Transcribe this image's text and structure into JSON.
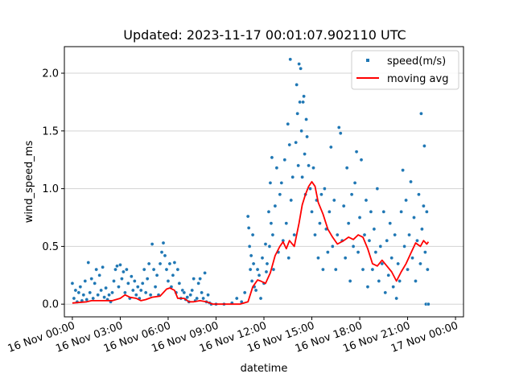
{
  "chart_data": {
    "type": "scatter",
    "title": "Updated: 2023-11-17 00:01:07.902110 UTC",
    "xlabel": "datetime",
    "ylabel": "wind_speed_ms",
    "x_range_hours": [
      -0.5,
      24.5
    ],
    "ylim": [
      -0.11,
      2.23
    ],
    "x_ticks": [
      {
        "hour": 0,
        "label": "16 Nov 00:00"
      },
      {
        "hour": 3,
        "label": "16 Nov 03:00"
      },
      {
        "hour": 6,
        "label": "16 Nov 06:00"
      },
      {
        "hour": 9,
        "label": "16 Nov 09:00"
      },
      {
        "hour": 12,
        "label": "16 Nov 12:00"
      },
      {
        "hour": 15,
        "label": "16 Nov 15:00"
      },
      {
        "hour": 18,
        "label": "16 Nov 18:00"
      },
      {
        "hour": 21,
        "label": "16 Nov 21:00"
      },
      {
        "hour": 24,
        "label": "17 Nov 00:00"
      }
    ],
    "y_ticks": [
      {
        "value": 0.0,
        "label": "0.0"
      },
      {
        "value": 0.5,
        "label": "0.5"
      },
      {
        "value": 1.0,
        "label": "1.0"
      },
      {
        "value": 1.5,
        "label": "1.5"
      },
      {
        "value": 2.0,
        "label": "2.0"
      }
    ],
    "grid": "horizontal",
    "legend": {
      "position": "top-right",
      "entries": [
        "speed(m/s)",
        "moving avg"
      ]
    },
    "series": [
      {
        "name": "speed(m/s)",
        "kind": "scatter",
        "color": "#1f77b4",
        "points": [
          [
            0.0,
            0.18
          ],
          [
            0.1,
            0.05
          ],
          [
            0.2,
            0.12
          ],
          [
            0.3,
            0.02
          ],
          [
            0.4,
            0.1
          ],
          [
            0.5,
            0.15
          ],
          [
            0.6,
            0.03
          ],
          [
            0.7,
            0.08
          ],
          [
            0.8,
            0.2
          ],
          [
            0.9,
            0.04
          ],
          [
            1.0,
            0.36
          ],
          [
            1.1,
            0.1
          ],
          [
            1.2,
            0.22
          ],
          [
            1.3,
            0.05
          ],
          [
            1.4,
            0.18
          ],
          [
            1.5,
            0.3
          ],
          [
            1.6,
            0.08
          ],
          [
            1.7,
            0.25
          ],
          [
            1.8,
            0.12
          ],
          [
            1.9,
            0.32
          ],
          [
            2.0,
            0.06
          ],
          [
            2.1,
            0.14
          ],
          [
            2.2,
            0.04
          ],
          [
            2.3,
            0.08
          ],
          [
            2.4,
            0.02
          ],
          [
            2.5,
            0.1
          ],
          [
            2.6,
            0.2
          ],
          [
            2.7,
            0.3
          ],
          [
            2.8,
            0.33
          ],
          [
            2.9,
            0.15
          ],
          [
            3.0,
            0.34
          ],
          [
            3.1,
            0.22
          ],
          [
            3.2,
            0.28
          ],
          [
            3.3,
            0.1
          ],
          [
            3.4,
            0.3
          ],
          [
            3.5,
            0.18
          ],
          [
            3.6,
            0.05
          ],
          [
            3.7,
            0.24
          ],
          [
            3.8,
            0.12
          ],
          [
            3.9,
            0.2
          ],
          [
            4.0,
            0.08
          ],
          [
            4.1,
            0.15
          ],
          [
            4.2,
            0.05
          ],
          [
            4.3,
            0.12
          ],
          [
            4.4,
            0.18
          ],
          [
            4.5,
            0.3
          ],
          [
            4.6,
            0.1
          ],
          [
            4.7,
            0.22
          ],
          [
            4.8,
            0.35
          ],
          [
            4.9,
            0.08
          ],
          [
            5.0,
            0.52
          ],
          [
            5.1,
            0.3
          ],
          [
            5.2,
            0.15
          ],
          [
            5.3,
            0.25
          ],
          [
            5.4,
            0.08
          ],
          [
            5.5,
            0.35
          ],
          [
            5.6,
            0.45
          ],
          [
            5.7,
            0.53
          ],
          [
            5.8,
            0.42
          ],
          [
            5.9,
            0.3
          ],
          [
            6.0,
            0.2
          ],
          [
            6.1,
            0.35
          ],
          [
            6.2,
            0.15
          ],
          [
            6.3,
            0.25
          ],
          [
            6.4,
            0.36
          ],
          [
            6.5,
            0.1
          ],
          [
            6.6,
            0.3
          ],
          [
            6.7,
            0.18
          ],
          [
            6.8,
            0.05
          ],
          [
            6.9,
            0.12
          ],
          [
            7.0,
            0.1
          ],
          [
            7.1,
            0.04
          ],
          [
            7.2,
            0.06
          ],
          [
            7.3,
            0.02
          ],
          [
            7.4,
            0.08
          ],
          [
            7.5,
            0.12
          ],
          [
            7.6,
            0.22
          ],
          [
            7.7,
            0.03
          ],
          [
            7.8,
            0.05
          ],
          [
            7.9,
            0.18
          ],
          [
            8.0,
            0.22
          ],
          [
            8.1,
            0.1
          ],
          [
            8.2,
            0.05
          ],
          [
            8.3,
            0.27
          ],
          [
            8.4,
            0.02
          ],
          [
            8.5,
            0.08
          ],
          [
            8.6,
            0.01
          ],
          [
            8.7,
            0.0
          ],
          [
            9.0,
            0.0
          ],
          [
            9.5,
            0.0
          ],
          [
            10.0,
            0.01
          ],
          [
            10.3,
            0.05
          ],
          [
            10.6,
            0.02
          ],
          [
            10.8,
            0.1
          ],
          [
            11.0,
            0.76
          ],
          [
            11.05,
            0.66
          ],
          [
            11.1,
            0.5
          ],
          [
            11.15,
            0.3
          ],
          [
            11.2,
            0.42
          ],
          [
            11.25,
            0.2
          ],
          [
            11.3,
            0.6
          ],
          [
            11.35,
            0.35
          ],
          [
            11.4,
            0.15
          ],
          [
            11.5,
            0.12
          ],
          [
            11.6,
            0.3
          ],
          [
            11.7,
            0.25
          ],
          [
            11.8,
            0.05
          ],
          [
            11.9,
            0.4
          ],
          [
            12.0,
            0.18
          ],
          [
            12.1,
            0.52
          ],
          [
            12.15,
            0.28
          ],
          [
            12.2,
            0.35
          ],
          [
            12.3,
            0.8
          ],
          [
            12.35,
            0.5
          ],
          [
            12.4,
            1.05
          ],
          [
            12.45,
            0.7
          ],
          [
            12.5,
            1.27
          ],
          [
            12.55,
            0.6
          ],
          [
            12.6,
            0.3
          ],
          [
            12.7,
            0.85
          ],
          [
            12.8,
            1.18
          ],
          [
            12.9,
            0.45
          ],
          [
            13.0,
            0.95
          ],
          [
            13.1,
            1.05
          ],
          [
            13.2,
            0.55
          ],
          [
            13.3,
            1.25
          ],
          [
            13.4,
            0.7
          ],
          [
            13.5,
            1.56
          ],
          [
            13.55,
            0.4
          ],
          [
            13.6,
            1.38
          ],
          [
            13.65,
            2.12
          ],
          [
            13.7,
            0.9
          ],
          [
            13.8,
            1.1
          ],
          [
            13.9,
            0.6
          ],
          [
            14.0,
            1.4
          ],
          [
            14.05,
            1.9
          ],
          [
            14.1,
            1.65
          ],
          [
            14.15,
            1.2
          ],
          [
            14.2,
            2.08
          ],
          [
            14.25,
            1.75
          ],
          [
            14.3,
            2.04
          ],
          [
            14.35,
            1.5
          ],
          [
            14.4,
            1.1
          ],
          [
            14.45,
            1.75
          ],
          [
            14.5,
            1.8
          ],
          [
            14.55,
            1.3
          ],
          [
            14.6,
            0.95
          ],
          [
            14.65,
            1.6
          ],
          [
            14.7,
            1.45
          ],
          [
            14.8,
            1.2
          ],
          [
            14.9,
            1.0
          ],
          [
            15.0,
            0.8
          ],
          [
            15.1,
            1.18
          ],
          [
            15.2,
            0.6
          ],
          [
            15.3,
            0.9
          ],
          [
            15.4,
            0.4
          ],
          [
            15.5,
            0.7
          ],
          [
            15.6,
            0.95
          ],
          [
            15.7,
            0.3
          ],
          [
            15.8,
            1.0
          ],
          [
            15.9,
            0.65
          ],
          [
            16.0,
            0.45
          ],
          [
            16.1,
            0.8
          ],
          [
            16.2,
            1.36
          ],
          [
            16.3,
            0.5
          ],
          [
            16.4,
            0.9
          ],
          [
            16.5,
            0.3
          ],
          [
            16.6,
            0.6
          ],
          [
            16.7,
            1.53
          ],
          [
            16.8,
            1.48
          ],
          [
            16.9,
            0.55
          ],
          [
            17.0,
            0.85
          ],
          [
            17.1,
            0.4
          ],
          [
            17.2,
            1.18
          ],
          [
            17.3,
            0.7
          ],
          [
            17.4,
            0.2
          ],
          [
            17.5,
            0.95
          ],
          [
            17.6,
            0.5
          ],
          [
            17.7,
            1.05
          ],
          [
            17.8,
            1.32
          ],
          [
            17.9,
            0.45
          ],
          [
            18.0,
            0.75
          ],
          [
            18.1,
            1.25
          ],
          [
            18.2,
            0.3
          ],
          [
            18.3,
            0.6
          ],
          [
            18.4,
            0.9
          ],
          [
            18.5,
            0.15
          ],
          [
            18.6,
            0.55
          ],
          [
            18.7,
            0.8
          ],
          [
            18.8,
            0.3
          ],
          [
            18.9,
            0.65
          ],
          [
            19.0,
            0.45
          ],
          [
            19.1,
            1.0
          ],
          [
            19.2,
            0.2
          ],
          [
            19.3,
            0.5
          ],
          [
            19.4,
            0.35
          ],
          [
            19.5,
            0.8
          ],
          [
            19.6,
            0.1
          ],
          [
            19.7,
            0.55
          ],
          [
            19.8,
            0.25
          ],
          [
            19.9,
            0.7
          ],
          [
            20.0,
            0.4
          ],
          [
            20.1,
            0.15
          ],
          [
            20.2,
            0.6
          ],
          [
            20.3,
            0.05
          ],
          [
            20.4,
            0.35
          ],
          [
            20.5,
            0.2
          ],
          [
            20.6,
            0.8
          ],
          [
            20.7,
            1.16
          ],
          [
            20.8,
            0.5
          ],
          [
            20.9,
            0.9
          ],
          [
            21.0,
            0.3
          ],
          [
            21.1,
            0.6
          ],
          [
            21.2,
            1.06
          ],
          [
            21.3,
            0.4
          ],
          [
            21.4,
            0.75
          ],
          [
            21.5,
            0.2
          ],
          [
            21.6,
            0.55
          ],
          [
            21.7,
            0.95
          ],
          [
            21.8,
            0.35
          ],
          [
            21.85,
            1.65
          ],
          [
            21.9,
            0.65
          ],
          [
            22.0,
            0.85
          ],
          [
            22.05,
            1.37
          ],
          [
            22.1,
            0.45
          ],
          [
            22.15,
            0.0
          ],
          [
            22.2,
            0.8
          ],
          [
            22.25,
            0.3
          ],
          [
            22.3,
            0.0
          ]
        ]
      },
      {
        "name": "moving avg",
        "kind": "line",
        "color": "#ff0000",
        "points": [
          [
            0.0,
            0.01
          ],
          [
            0.9,
            0.02
          ],
          [
            1.2,
            0.03
          ],
          [
            2.0,
            0.03
          ],
          [
            2.5,
            0.03
          ],
          [
            3.0,
            0.05
          ],
          [
            3.3,
            0.08
          ],
          [
            3.6,
            0.06
          ],
          [
            4.0,
            0.05
          ],
          [
            4.3,
            0.03
          ],
          [
            4.6,
            0.04
          ],
          [
            5.0,
            0.06
          ],
          [
            5.5,
            0.07
          ],
          [
            5.9,
            0.13
          ],
          [
            6.1,
            0.14
          ],
          [
            6.4,
            0.12
          ],
          [
            6.6,
            0.05
          ],
          [
            7.0,
            0.05
          ],
          [
            7.3,
            0.02
          ],
          [
            7.6,
            0.02
          ],
          [
            8.0,
            0.03
          ],
          [
            8.4,
            0.02
          ],
          [
            8.8,
            0.0
          ],
          [
            9.5,
            0.0
          ],
          [
            10.0,
            0.0
          ],
          [
            10.5,
            0.0
          ],
          [
            11.0,
            0.02
          ],
          [
            11.3,
            0.15
          ],
          [
            11.6,
            0.21
          ],
          [
            11.8,
            0.2
          ],
          [
            12.1,
            0.18
          ],
          [
            12.4,
            0.27
          ],
          [
            12.7,
            0.42
          ],
          [
            13.0,
            0.5
          ],
          [
            13.2,
            0.54
          ],
          [
            13.4,
            0.48
          ],
          [
            13.6,
            0.55
          ],
          [
            13.9,
            0.5
          ],
          [
            14.2,
            0.7
          ],
          [
            14.4,
            0.86
          ],
          [
            14.6,
            0.95
          ],
          [
            14.8,
            1.02
          ],
          [
            15.0,
            1.06
          ],
          [
            15.2,
            1.02
          ],
          [
            15.4,
            0.88
          ],
          [
            15.7,
            0.78
          ],
          [
            16.0,
            0.65
          ],
          [
            16.3,
            0.58
          ],
          [
            16.6,
            0.52
          ],
          [
            17.0,
            0.55
          ],
          [
            17.3,
            0.58
          ],
          [
            17.6,
            0.56
          ],
          [
            17.9,
            0.6
          ],
          [
            18.2,
            0.58
          ],
          [
            18.5,
            0.48
          ],
          [
            18.8,
            0.35
          ],
          [
            19.1,
            0.33
          ],
          [
            19.4,
            0.38
          ],
          [
            19.7,
            0.33
          ],
          [
            20.0,
            0.28
          ],
          [
            20.3,
            0.2
          ],
          [
            20.6,
            0.28
          ],
          [
            20.9,
            0.35
          ],
          [
            21.2,
            0.44
          ],
          [
            21.5,
            0.53
          ],
          [
            21.8,
            0.5
          ],
          [
            22.0,
            0.55
          ],
          [
            22.2,
            0.52
          ],
          [
            22.3,
            0.54
          ]
        ]
      }
    ]
  }
}
